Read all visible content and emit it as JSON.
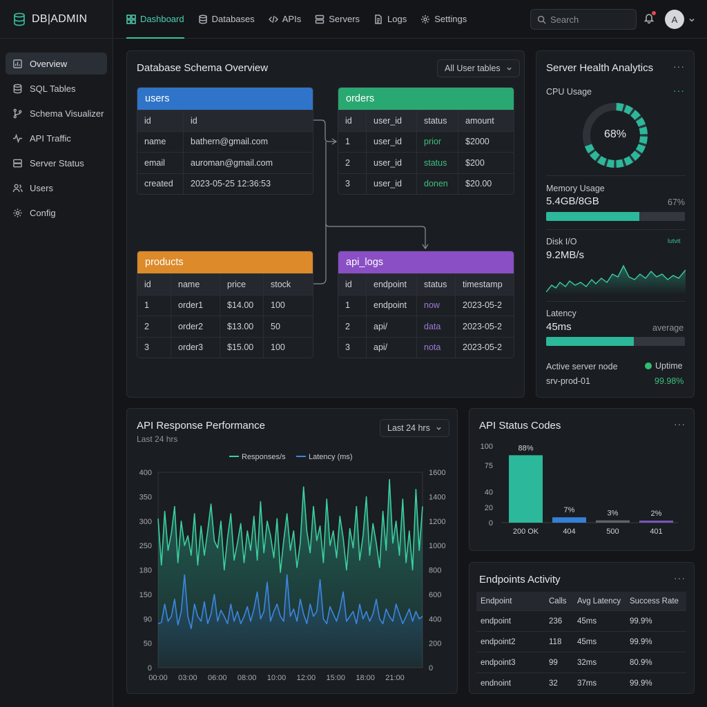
{
  "brand": {
    "name": "DB|ADMIN"
  },
  "sidebar": {
    "items": [
      {
        "label": "Overview",
        "icon": "chart-box-icon",
        "active": true
      },
      {
        "label": "SQL Tables",
        "icon": "database-icon"
      },
      {
        "label": "Schema Visualizer",
        "icon": "branch-icon"
      },
      {
        "label": "API Traffic",
        "icon": "pulse-icon"
      },
      {
        "label": "Server Status",
        "icon": "server-icon"
      },
      {
        "label": "Users",
        "icon": "users-icon"
      },
      {
        "label": "Config",
        "icon": "gear-icon"
      }
    ]
  },
  "topbar": {
    "tabs": [
      {
        "label": "Dashboard",
        "icon": "grid-icon",
        "active": true
      },
      {
        "label": "Databases",
        "icon": "database-icon"
      },
      {
        "label": "APIs",
        "icon": "code-icon"
      },
      {
        "label": "Servers",
        "icon": "server-icon"
      },
      {
        "label": "Logs",
        "icon": "file-icon"
      },
      {
        "label": "Settings",
        "icon": "gear-icon"
      }
    ],
    "search_placeholder": "Search",
    "avatar_initial": "A"
  },
  "schema": {
    "title": "Database Schema Overview",
    "filter": "All User tables",
    "tables": {
      "users": {
        "name": "users",
        "color": "#2f74c8",
        "rows": [
          [
            "id",
            "id"
          ],
          [
            "name",
            "bathern@gmail.com"
          ],
          [
            "email",
            "auroman@gmail.com"
          ],
          [
            "created",
            "2023-05-25 12:36:53"
          ]
        ]
      },
      "orders": {
        "name": "orders",
        "color": "#2aa871",
        "header": [
          "id",
          "user_id",
          "status",
          "amount"
        ],
        "rows": [
          [
            "1",
            "user_id",
            "prior",
            "$2000"
          ],
          [
            "2",
            "user_id",
            "status",
            "$200"
          ],
          [
            "3",
            "user_id",
            "donen",
            "$20.00"
          ]
        ]
      },
      "products": {
        "name": "products",
        "color": "#dc8a2a",
        "header": [
          "id",
          "name",
          "price",
          "stock"
        ],
        "rows": [
          [
            "1",
            "order1",
            "$14.00",
            "100"
          ],
          [
            "2",
            "order2",
            "$13.00",
            "50"
          ],
          [
            "3",
            "order3",
            "$15.00",
            "100"
          ]
        ]
      },
      "api_logs": {
        "name": "api_logs",
        "color": "#8a4fc4",
        "header": [
          "id",
          "endpoint",
          "status",
          "timestamp"
        ],
        "rows": [
          [
            "1",
            "endpoint",
            "now",
            "2023-05-2"
          ],
          [
            "2",
            "api/",
            "data",
            "2023-05-2"
          ],
          [
            "3",
            "api/",
            "nota",
            "2023-05-2"
          ]
        ]
      }
    }
  },
  "health": {
    "title": "Server Health Analytics",
    "cpu_label": "CPU Usage",
    "cpu_value": "68%",
    "cpu_fraction": 0.68,
    "memory_label": "Memory Usage",
    "memory_value": "5.4GB/8GB",
    "memory_pct": "67%",
    "memory_fraction": 0.67,
    "disk_label": "Disk I/O",
    "disk_value": "9.2MB/s",
    "disk_tag": "lutvit",
    "latency_label": "Latency",
    "latency_value": "45ms",
    "latency_note": "average",
    "latency_fraction": 0.63,
    "node_label": "Active server node",
    "node_name": "srv-prod-01",
    "uptime_label": "Uptime",
    "uptime_value": "99.98%"
  },
  "performance": {
    "title": "API Response Performance",
    "subtitle": "Last 24 hrs",
    "range": "Last 24 hrs"
  },
  "chart_data": [
    {
      "type": "line",
      "title": "API Response Performance",
      "subtitle": "Last 24 hrs",
      "x_ticks": [
        "00:00",
        "03:00",
        "06:00",
        "08:00",
        "10:00",
        "12:00",
        "15:00",
        "18:00",
        "21:00"
      ],
      "y_left_ticks": [
        "0",
        "50",
        "90",
        "150",
        "180",
        "250",
        "300",
        "350",
        "400"
      ],
      "y_right_ticks": [
        "0",
        "200",
        "400",
        "600",
        "800",
        "1000",
        "1200",
        "1400",
        "1600"
      ],
      "ylim_left": [
        0,
        400
      ],
      "ylim_right": [
        0,
        1600
      ],
      "legend": "top",
      "series": [
        {
          "name": "Responses/s",
          "color": "#3ccf9f",
          "axis": "left",
          "values": [
            305,
            210,
            320,
            240,
            275,
            330,
            215,
            300,
            250,
            270,
            230,
            315,
            210,
            290,
            230,
            280,
            335,
            260,
            245,
            300,
            200,
            265,
            315,
            220,
            255,
            295,
            215,
            280,
            240,
            310,
            220,
            340,
            235,
            300,
            270,
            225,
            305,
            195,
            260,
            315,
            240,
            280,
            205,
            255,
            370,
            280,
            235,
            330,
            260,
            290,
            215,
            345,
            250,
            280,
            225,
            310,
            265,
            200,
            285,
            245,
            330,
            220,
            270,
            350,
            230,
            295,
            255,
            205,
            320,
            240,
            385,
            255,
            300,
            230,
            345,
            215,
            280,
            200,
            365,
            240,
            330
          ]
        },
        {
          "name": "Latency (ms)",
          "color": "#3e86e0",
          "axis": "right",
          "values": [
            360,
            370,
            520,
            380,
            420,
            560,
            350,
            460,
            760,
            420,
            320,
            520,
            420,
            380,
            540,
            360,
            440,
            600,
            380,
            470,
            420,
            360,
            520,
            380,
            460,
            360,
            420,
            500,
            380,
            480,
            620,
            400,
            460,
            700,
            380,
            460,
            520,
            420,
            380,
            760,
            420,
            480,
            380,
            560,
            440,
            360,
            520,
            420,
            460,
            720,
            400,
            360,
            500,
            440,
            380,
            480,
            620,
            380,
            420,
            460,
            360,
            520,
            400,
            460,
            380,
            440,
            560,
            400,
            360,
            480,
            420,
            380,
            520,
            440,
            360,
            420,
            480,
            380,
            460,
            400,
            420
          ]
        }
      ]
    },
    {
      "type": "bar",
      "title": "API Status Codes",
      "categories": [
        "200 OK",
        "404",
        "500",
        "401"
      ],
      "values": [
        88,
        7,
        3,
        2
      ],
      "data_labels": [
        "88%",
        "7%",
        "3%",
        "2%"
      ],
      "colors": [
        "#2cb89a",
        "#3580d6",
        "#5f646c",
        "#7b55b8"
      ],
      "y_ticks": [
        "0",
        "20",
        "40",
        "75",
        "100"
      ],
      "ylim": [
        0,
        100
      ]
    }
  ],
  "status_codes": {
    "title": "API Status Codes"
  },
  "endpoints": {
    "title": "Endpoints Activity",
    "header": [
      "Endpoint",
      "Calls",
      "Avg Latency",
      "Success Rate"
    ],
    "rows": [
      [
        "endpoint",
        "236",
        "45ms",
        "99.9%"
      ],
      [
        "endpoint2",
        "118",
        "45ms",
        "99.9%"
      ],
      [
        "endpoint3",
        "99",
        "32ms",
        "80.9%"
      ],
      [
        "endnoint",
        "32",
        "37ms",
        "99.9%"
      ]
    ]
  },
  "colors": {
    "accent": "#35c3a2",
    "panel": "#1a1d21",
    "background": "#131519"
  }
}
